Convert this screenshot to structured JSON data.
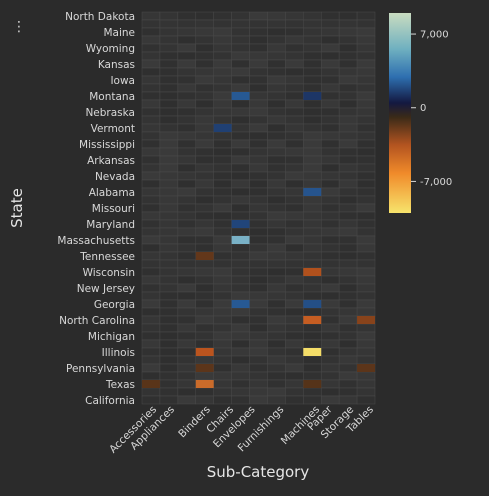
{
  "menu": {
    "icon": "vertical-ellipsis-icon"
  },
  "chart_data": {
    "type": "heatmap",
    "xlabel": "Sub-Category",
    "ylabel": "State",
    "x_categories": [
      "Accessories",
      "Appliances",
      "Binders",
      "Chairs",
      "Envelopes",
      "Furnishings",
      "Machines",
      "Paper",
      "Storage",
      "Tables"
    ],
    "y_tick_labels": [
      "North Dakota",
      "Maine",
      "Wyoming",
      "Kansas",
      "Iowa",
      "Montana",
      "Nebraska",
      "Vermont",
      "Mississippi",
      "Arkansas",
      "Nevada",
      "Alabama",
      "Missouri",
      "Maryland",
      "Massachusetts",
      "Tennessee",
      "Wisconsin",
      "New Jersey",
      "Georgia",
      "North Carolina",
      "Michigan",
      "Illinois",
      "Pennsylvania",
      "Texas",
      "California"
    ],
    "color_scale": {
      "min": -10000,
      "max": 9000,
      "ticks": [
        7000,
        0,
        -7000
      ],
      "tick_labels": [
        "7,000",
        "0",
        "-7,000"
      ],
      "colors": {
        "high": "#c9dcc0",
        "mid_high": "#3d8fb0",
        "zero": "#141840",
        "mid_low": "#e06d1f",
        "low": "#f7e46c"
      }
    },
    "highlighted_cells": [
      {
        "state": "Montana",
        "subcategory": "Envelopes",
        "value": 2600
      },
      {
        "state": "Montana",
        "subcategory": "Machines",
        "value": 1200
      },
      {
        "state": "Vermont",
        "subcategory": "Chairs",
        "value": 1600
      },
      {
        "state": "Alabama",
        "subcategory": "Machines",
        "value": 2400
      },
      {
        "state": "Maryland",
        "subcategory": "Envelopes",
        "value": 1800
      },
      {
        "state": "Massachusetts",
        "subcategory": "Envelopes",
        "value": 6200
      },
      {
        "state": "Tennessee",
        "subcategory": "Binders",
        "value": -1200
      },
      {
        "state": "Wisconsin",
        "subcategory": "Machines",
        "value": -3500
      },
      {
        "state": "Georgia",
        "subcategory": "Envelopes",
        "value": 2600
      },
      {
        "state": "Georgia",
        "subcategory": "Machines",
        "value": 2200
      },
      {
        "state": "North Carolina",
        "subcategory": "Machines",
        "value": -4200
      },
      {
        "state": "North Carolina",
        "subcategory": "Tables",
        "value": -2300
      },
      {
        "state": "Illinois",
        "subcategory": "Binders",
        "value": -3800
      },
      {
        "state": "Illinois",
        "subcategory": "Machines",
        "value": -7800
      },
      {
        "state": "Texas",
        "subcategory": "Binders",
        "value": -4600
      },
      {
        "state": "Texas",
        "subcategory": "Accessories",
        "value": -900
      },
      {
        "state": "Texas",
        "subcategory": "Machines",
        "value": -800
      },
      {
        "state": "Pennsylvania",
        "subcategory": "Tables",
        "value": -1000
      },
      {
        "state": "Pennsylvania",
        "subcategory": "Binders",
        "value": -1000
      }
    ],
    "grid": true,
    "legend": "right"
  }
}
